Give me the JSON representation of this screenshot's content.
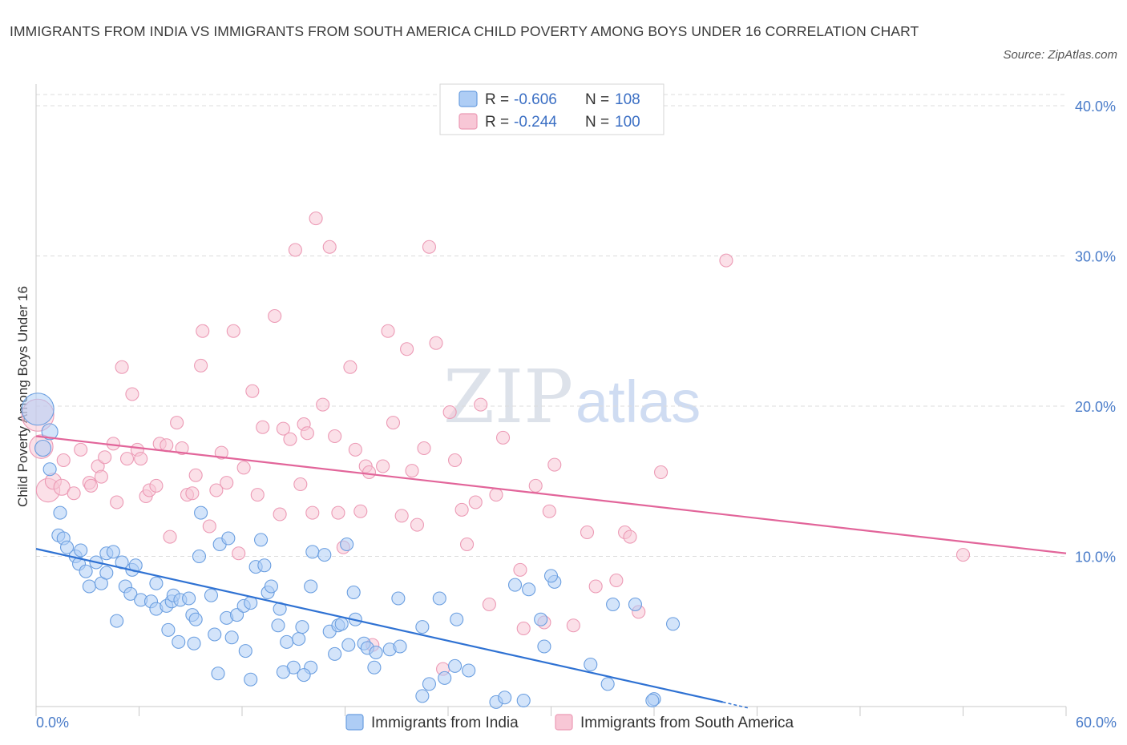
{
  "title": "IMMIGRANTS FROM INDIA VS IMMIGRANTS FROM SOUTH AMERICA CHILD POVERTY AMONG BOYS UNDER 16 CORRELATION CHART",
  "source": "Source: ZipAtlas.com",
  "watermark": {
    "zip": "ZIP",
    "atlas": "atlas"
  },
  "colors": {
    "india_fill": "#aecdf5",
    "india_stroke": "#6a9ee0",
    "india_line": "#2f72d3",
    "sa_fill": "#f8c7d6",
    "sa_stroke": "#ec9ab5",
    "sa_line": "#e2659a",
    "tick": "#4a7cc9",
    "grid": "#dcdcdc"
  },
  "legend": {
    "rows": [
      {
        "r_label": "R = ",
        "r_value": "-0.606",
        "n_label": "N = ",
        "n_value": "108"
      },
      {
        "r_label": "R = ",
        "r_value": "-0.244",
        "n_label": "N = ",
        "n_value": "100"
      }
    ]
  },
  "bottom_legend": [
    "Immigrants from India",
    "Immigrants from South America"
  ],
  "chart_data": {
    "type": "scatter",
    "title": "IMMIGRANTS FROM INDIA VS IMMIGRANTS FROM SOUTH AMERICA CHILD POVERTY AMONG BOYS UNDER 16 CORRELATION CHART",
    "xlabel": "",
    "ylabel": "Child Poverty Among Boys Under 16",
    "xlim": [
      0,
      60
    ],
    "ylim": [
      0,
      40
    ],
    "x_tick_labels": [
      "0.0%",
      "60.0%"
    ],
    "y_ticks": [
      10,
      20,
      30,
      40
    ],
    "y_tick_labels": [
      "10.0%",
      "20.0%",
      "30.0%",
      "40.0%"
    ],
    "grid": true,
    "legend_position": "top-center",
    "series": [
      {
        "name": "Immigrants from India",
        "R": -0.606,
        "N": 108,
        "trend": {
          "x": [
            0,
            40
          ],
          "y": [
            10.5,
            0.3
          ]
        },
        "points": [
          [
            0.1,
            19.8,
            3
          ],
          [
            0.8,
            18.3,
            1.5
          ],
          [
            0.4,
            17.2,
            1.5
          ],
          [
            0.8,
            15.8,
            1.2
          ],
          [
            1.4,
            12.9,
            1.2
          ],
          [
            1.3,
            11.4,
            1.2
          ],
          [
            1.6,
            11.2,
            1.2
          ],
          [
            1.8,
            10.6,
            1.2
          ],
          [
            2.3,
            10.0,
            1.2
          ],
          [
            2.6,
            10.4,
            1.2
          ],
          [
            2.5,
            9.5,
            1.2
          ],
          [
            2.9,
            9.0,
            1.2
          ],
          [
            3.5,
            9.6,
            1.2
          ],
          [
            3.1,
            8.0,
            1.2
          ],
          [
            3.8,
            8.2,
            1.2
          ],
          [
            4.1,
            8.9,
            1.2
          ],
          [
            4.1,
            10.2,
            1.2
          ],
          [
            4.5,
            10.3,
            1.2
          ],
          [
            5.0,
            9.6,
            1.2
          ],
          [
            5.6,
            9.1,
            1.2
          ],
          [
            5.8,
            9.4,
            1.2
          ],
          [
            5.2,
            8.0,
            1.2
          ],
          [
            5.5,
            7.5,
            1.2
          ],
          [
            6.1,
            7.1,
            1.2
          ],
          [
            6.7,
            7.0,
            1.2
          ],
          [
            7.0,
            8.2,
            1.2
          ],
          [
            7.0,
            6.5,
            1.2
          ],
          [
            7.6,
            6.7,
            1.2
          ],
          [
            7.9,
            7.0,
            1.2
          ],
          [
            8.0,
            7.4,
            1.2
          ],
          [
            8.4,
            7.1,
            1.2
          ],
          [
            8.9,
            7.2,
            1.2
          ],
          [
            4.7,
            5.7,
            1.2
          ],
          [
            7.7,
            5.1,
            1.2
          ],
          [
            8.3,
            4.3,
            1.2
          ],
          [
            9.1,
            6.1,
            1.2
          ],
          [
            9.3,
            5.8,
            1.2
          ],
          [
            9.5,
            10.0,
            1.2
          ],
          [
            9.6,
            12.9,
            1.2
          ],
          [
            10.2,
            7.4,
            1.2
          ],
          [
            10.7,
            10.8,
            1.2
          ],
          [
            10.4,
            4.8,
            1.2
          ],
          [
            11.1,
            5.9,
            1.2
          ],
          [
            11.4,
            4.6,
            1.2
          ],
          [
            11.2,
            11.2,
            1.2
          ],
          [
            11.7,
            6.1,
            1.2
          ],
          [
            12.1,
            6.7,
            1.2
          ],
          [
            12.5,
            6.9,
            1.2
          ],
          [
            12.8,
            9.3,
            1.2
          ],
          [
            12.2,
            3.7,
            1.2
          ],
          [
            13.1,
            11.1,
            1.2
          ],
          [
            13.3,
            9.4,
            1.2
          ],
          [
            13.5,
            7.6,
            1.2
          ],
          [
            13.7,
            8.0,
            1.2
          ],
          [
            14.2,
            6.5,
            1.2
          ],
          [
            14.1,
            5.4,
            1.2
          ],
          [
            14.6,
            4.3,
            1.2
          ],
          [
            15.3,
            4.5,
            1.2
          ],
          [
            15.5,
            5.3,
            1.2
          ],
          [
            15.0,
            2.6,
            1.2
          ],
          [
            14.4,
            2.3,
            1.2
          ],
          [
            16.0,
            8.0,
            1.2
          ],
          [
            16.1,
            10.3,
            1.2
          ],
          [
            16.8,
            10.1,
            1.2
          ],
          [
            17.1,
            5.0,
            1.2
          ],
          [
            17.6,
            5.4,
            1.2
          ],
          [
            17.8,
            5.5,
            1.2
          ],
          [
            18.1,
            10.8,
            1.2
          ],
          [
            18.5,
            7.6,
            1.2
          ],
          [
            18.6,
            5.8,
            1.2
          ],
          [
            18.2,
            4.1,
            1.2
          ],
          [
            17.4,
            3.5,
            1.2
          ],
          [
            16.0,
            2.6,
            1.2
          ],
          [
            15.6,
            2.1,
            1.2
          ],
          [
            19.1,
            4.2,
            1.2
          ],
          [
            19.3,
            3.9,
            1.2
          ],
          [
            19.8,
            3.6,
            1.2
          ],
          [
            20.6,
            3.8,
            1.2
          ],
          [
            21.2,
            4.0,
            1.2
          ],
          [
            19.7,
            2.6,
            1.2
          ],
          [
            21.1,
            7.2,
            1.2
          ],
          [
            22.5,
            5.3,
            1.2
          ],
          [
            23.5,
            7.2,
            1.2
          ],
          [
            24.5,
            5.8,
            1.2
          ],
          [
            24.4,
            2.7,
            1.2
          ],
          [
            25.2,
            2.4,
            1.2
          ],
          [
            23.8,
            1.9,
            1.2
          ],
          [
            22.9,
            1.5,
            1.2
          ],
          [
            22.5,
            0.7,
            1.2
          ],
          [
            26.8,
            0.3,
            1.2
          ],
          [
            27.3,
            0.6,
            1.2
          ],
          [
            27.9,
            8.1,
            1.2
          ],
          [
            28.7,
            7.8,
            1.2
          ],
          [
            29.4,
            5.8,
            1.2
          ],
          [
            29.6,
            4.0,
            1.2
          ],
          [
            30.2,
            8.3,
            1.2
          ],
          [
            30.0,
            8.7,
            1.2
          ],
          [
            32.3,
            2.8,
            1.2
          ],
          [
            33.6,
            6.8,
            1.2
          ],
          [
            34.9,
            6.8,
            1.2
          ],
          [
            33.3,
            1.5,
            1.2
          ],
          [
            36.0,
            0.5,
            1.2
          ],
          [
            37.1,
            5.5,
            1.2
          ],
          [
            10.6,
            2.2,
            1.2
          ],
          [
            12.5,
            1.8,
            1.2
          ],
          [
            28.4,
            0.4,
            1.2
          ],
          [
            35.9,
            0.4,
            1.2
          ],
          [
            9.2,
            4.2,
            1.2
          ]
        ]
      },
      {
        "name": "Immigrants from South America",
        "R": -0.244,
        "N": 100,
        "trend": {
          "x": [
            0,
            60
          ],
          "y": [
            18.0,
            10.2
          ]
        },
        "points": [
          [
            0.1,
            19.4,
            3
          ],
          [
            0.3,
            17.3,
            2.2
          ],
          [
            0.7,
            14.4,
            2.2
          ],
          [
            1.0,
            15.0,
            1.5
          ],
          [
            1.5,
            14.6,
            1.5
          ],
          [
            1.6,
            16.4,
            1.2
          ],
          [
            2.2,
            14.2,
            1.2
          ],
          [
            2.6,
            17.1,
            1.2
          ],
          [
            3.1,
            14.9,
            1.2
          ],
          [
            3.2,
            14.7,
            1.2
          ],
          [
            3.6,
            16.0,
            1.2
          ],
          [
            3.8,
            15.3,
            1.2
          ],
          [
            4.0,
            16.6,
            1.2
          ],
          [
            4.5,
            17.5,
            1.2
          ],
          [
            4.7,
            13.6,
            1.2
          ],
          [
            5.0,
            22.6,
            1.2
          ],
          [
            5.3,
            16.5,
            1.2
          ],
          [
            5.6,
            20.8,
            1.2
          ],
          [
            5.9,
            17.1,
            1.2
          ],
          [
            6.1,
            16.5,
            1.2
          ],
          [
            6.4,
            14.0,
            1.2
          ],
          [
            6.6,
            14.4,
            1.2
          ],
          [
            7.0,
            14.7,
            1.2
          ],
          [
            7.2,
            17.5,
            1.2
          ],
          [
            7.6,
            17.4,
            1.2
          ],
          [
            7.8,
            11.3,
            1.2
          ],
          [
            8.2,
            18.9,
            1.2
          ],
          [
            8.5,
            17.2,
            1.2
          ],
          [
            8.8,
            14.1,
            1.2
          ],
          [
            9.1,
            14.2,
            1.2
          ],
          [
            9.3,
            15.4,
            1.2
          ],
          [
            9.6,
            22.7,
            1.2
          ],
          [
            9.7,
            25.0,
            1.2
          ],
          [
            10.1,
            12.0,
            1.2
          ],
          [
            10.5,
            14.4,
            1.2
          ],
          [
            10.8,
            16.9,
            1.2
          ],
          [
            11.1,
            14.9,
            1.2
          ],
          [
            11.5,
            25.0,
            1.2
          ],
          [
            11.8,
            10.2,
            1.2
          ],
          [
            12.1,
            15.9,
            1.2
          ],
          [
            12.6,
            21.0,
            1.2
          ],
          [
            12.9,
            14.1,
            1.2
          ],
          [
            13.2,
            18.6,
            1.2
          ],
          [
            13.9,
            26.0,
            1.2
          ],
          [
            14.2,
            12.8,
            1.2
          ],
          [
            14.4,
            18.5,
            1.2
          ],
          [
            14.8,
            17.8,
            1.2
          ],
          [
            15.1,
            30.4,
            1.2
          ],
          [
            15.4,
            14.8,
            1.2
          ],
          [
            15.6,
            18.8,
            1.2
          ],
          [
            15.8,
            18.2,
            1.2
          ],
          [
            16.3,
            32.5,
            1.2
          ],
          [
            16.1,
            12.9,
            1.2
          ],
          [
            16.7,
            20.1,
            1.2
          ],
          [
            17.1,
            30.6,
            1.2
          ],
          [
            17.4,
            18.0,
            1.2
          ],
          [
            17.6,
            12.9,
            1.2
          ],
          [
            17.9,
            10.6,
            1.2
          ],
          [
            18.3,
            22.6,
            1.2
          ],
          [
            18.6,
            17.1,
            1.2
          ],
          [
            18.9,
            13.0,
            1.2
          ],
          [
            19.2,
            16.0,
            1.2
          ],
          [
            19.4,
            15.6,
            1.2
          ],
          [
            19.6,
            4.1,
            1.2
          ],
          [
            20.2,
            16.0,
            1.2
          ],
          [
            20.5,
            25.0,
            1.2
          ],
          [
            20.8,
            18.9,
            1.2
          ],
          [
            21.3,
            12.7,
            1.2
          ],
          [
            21.6,
            23.8,
            1.2
          ],
          [
            21.9,
            15.7,
            1.2
          ],
          [
            22.2,
            12.1,
            1.2
          ],
          [
            22.6,
            17.2,
            1.2
          ],
          [
            22.9,
            30.6,
            1.2
          ],
          [
            23.3,
            24.2,
            1.2
          ],
          [
            23.7,
            2.5,
            1.2
          ],
          [
            24.1,
            19.6,
            1.2
          ],
          [
            24.4,
            16.4,
            1.2
          ],
          [
            24.8,
            13.1,
            1.2
          ],
          [
            25.1,
            10.8,
            1.2
          ],
          [
            25.6,
            13.6,
            1.2
          ],
          [
            25.9,
            20.1,
            1.2
          ],
          [
            26.4,
            6.8,
            1.2
          ],
          [
            26.8,
            14.1,
            1.2
          ],
          [
            27.2,
            17.9,
            1.2
          ],
          [
            28.2,
            9.1,
            1.2
          ],
          [
            28.4,
            5.2,
            1.2
          ],
          [
            29.1,
            14.7,
            1.2
          ],
          [
            29.6,
            5.6,
            1.2
          ],
          [
            29.9,
            13.0,
            1.2
          ],
          [
            30.2,
            16.1,
            1.2
          ],
          [
            31.3,
            5.4,
            1.2
          ],
          [
            32.1,
            11.6,
            1.2
          ],
          [
            32.6,
            8.0,
            1.2
          ],
          [
            33.8,
            8.4,
            1.2
          ],
          [
            34.3,
            11.6,
            1.2
          ],
          [
            34.6,
            11.3,
            1.2
          ],
          [
            35.1,
            6.3,
            1.2
          ],
          [
            36.4,
            15.6,
            1.2
          ],
          [
            40.2,
            29.7,
            1.2
          ],
          [
            54.0,
            10.1,
            1.2
          ]
        ]
      }
    ]
  }
}
